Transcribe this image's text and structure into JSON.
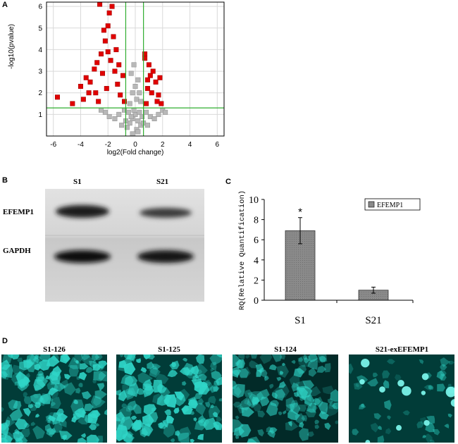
{
  "panels": {
    "A": "A",
    "B": "B",
    "C": "C",
    "D": "D"
  },
  "volcano": {
    "xlabel": "log2(Fold change)",
    "ylabel": "-log10(pvalue)",
    "x_ticks": [
      "-6",
      "-4",
      "-2",
      "0",
      "2",
      "4",
      "6"
    ],
    "y_ticks": [
      "1",
      "2",
      "3",
      "4",
      "5",
      "6"
    ],
    "colors": {
      "significant": "#e00000",
      "nonsignificant": "#b8b8b8",
      "threshold": "#2fae2f",
      "grid": "#d9d9d9"
    }
  },
  "western": {
    "lanes": [
      "S1",
      "S21"
    ],
    "proteins": [
      "EFEMP1",
      "GAPDH"
    ]
  },
  "chart_data": [
    {
      "type": "scatter",
      "xlabel": "log2(Fold change)",
      "ylabel": "-log10(pvalue)",
      "xlim": [
        -6.5,
        6.5
      ],
      "ylim": [
        0,
        6.2
      ],
      "grid": true,
      "thresholds": {
        "x": [
          -0.7,
          0.6
        ],
        "y": [
          1.3
        ]
      },
      "series": [
        {
          "points": [
            [
              -5.7,
              1.8
            ],
            [
              -4.6,
              1.5
            ],
            [
              -4.0,
              2.3
            ],
            [
              -3.6,
              2.7
            ],
            [
              -3.3,
              2.5
            ],
            [
              -3.0,
              3.1
            ],
            [
              -2.8,
              3.4
            ],
            [
              -2.5,
              3.8
            ],
            [
              -2.2,
              4.4
            ],
            [
              -2.3,
              4.9
            ],
            [
              -2.0,
              5.1
            ],
            [
              -1.9,
              5.7
            ],
            [
              -1.7,
              6.0
            ],
            [
              -2.6,
              6.1
            ],
            [
              -2.9,
              2.0
            ],
            [
              -2.7,
              1.6
            ],
            [
              -2.4,
              2.9
            ],
            [
              -2.1,
              2.2
            ],
            [
              -1.8,
              3.5
            ],
            [
              -1.5,
              3.0
            ],
            [
              -1.3,
              2.4
            ],
            [
              -1.1,
              1.9
            ],
            [
              -1.4,
              4.0
            ],
            [
              -1.2,
              3.3
            ],
            [
              -0.9,
              2.8
            ],
            [
              -0.8,
              1.6
            ],
            [
              -1.6,
              4.6
            ],
            [
              -3.4,
              2.0
            ],
            [
              -3.8,
              1.7
            ],
            [
              -2.0,
              3.9
            ],
            [
              0.8,
              1.5
            ],
            [
              0.9,
              2.2
            ],
            [
              1.1,
              2.8
            ],
            [
              1.3,
              3.0
            ],
            [
              1.5,
              2.5
            ],
            [
              1.7,
              1.9
            ],
            [
              1.9,
              1.5
            ],
            [
              1.0,
              3.3
            ],
            [
              0.7,
              3.6
            ],
            [
              1.2,
              2.0
            ],
            [
              1.8,
              2.7
            ],
            [
              1.6,
              1.6
            ],
            [
              0.9,
              2.6
            ],
            [
              0.7,
              3.8
            ]
          ]
        },
        {
          "points": [
            [
              -0.6,
              0.4
            ],
            [
              -0.4,
              0.6
            ],
            [
              -0.2,
              0.8
            ],
            [
              0.0,
              1.0
            ],
            [
              0.2,
              0.7
            ],
            [
              0.4,
              0.5
            ],
            [
              -0.1,
              1.2
            ],
            [
              0.1,
              0.3
            ],
            [
              0.3,
              1.1
            ],
            [
              -0.3,
              0.9
            ],
            [
              -0.5,
              1.1
            ],
            [
              0.5,
              0.9
            ],
            [
              -0.7,
              0.7
            ],
            [
              0.6,
              0.6
            ],
            [
              -0.2,
              2.0
            ],
            [
              0.2,
              2.6
            ],
            [
              -0.1,
              3.3
            ],
            [
              0.1,
              1.7
            ],
            [
              0.0,
              2.3
            ],
            [
              -0.3,
              2.9
            ],
            [
              0.3,
              2.0
            ],
            [
              -0.4,
              1.5
            ],
            [
              0.4,
              1.6
            ],
            [
              -0.8,
              1.2
            ],
            [
              0.8,
              1.1
            ],
            [
              -1.2,
              1.0
            ],
            [
              1.1,
              0.9
            ],
            [
              -1.5,
              0.8
            ],
            [
              1.4,
              0.8
            ],
            [
              -1.9,
              0.9
            ],
            [
              1.7,
              1.0
            ],
            [
              -2.2,
              1.1
            ],
            [
              2.0,
              1.2
            ],
            [
              -2.5,
              1.2
            ],
            [
              2.2,
              1.1
            ],
            [
              -1.0,
              0.5
            ],
            [
              0.9,
              0.5
            ],
            [
              -0.2,
              0.1
            ],
            [
              0.2,
              0.2
            ]
          ]
        }
      ]
    },
    {
      "type": "bar",
      "ylabel": "RQ(Relative Quantification)",
      "categories": [
        "S1",
        "S21"
      ],
      "series": [
        {
          "name": "EFEMP1",
          "values": [
            6.9,
            1.0
          ],
          "errors": [
            1.3,
            0.3
          ]
        }
      ],
      "ylim": [
        0,
        10
      ],
      "y_ticks": [
        "0",
        "2",
        "4",
        "6",
        "8",
        "10"
      ],
      "annotation": "*",
      "legend": "top-right",
      "colors": {
        "bar": "#8a8a8a"
      }
    }
  ],
  "micrographs": {
    "titles": [
      "S1-126",
      "S1-125",
      "S1-124",
      "S21-exEFEMP1"
    ],
    "color": "#2fd6c8"
  }
}
